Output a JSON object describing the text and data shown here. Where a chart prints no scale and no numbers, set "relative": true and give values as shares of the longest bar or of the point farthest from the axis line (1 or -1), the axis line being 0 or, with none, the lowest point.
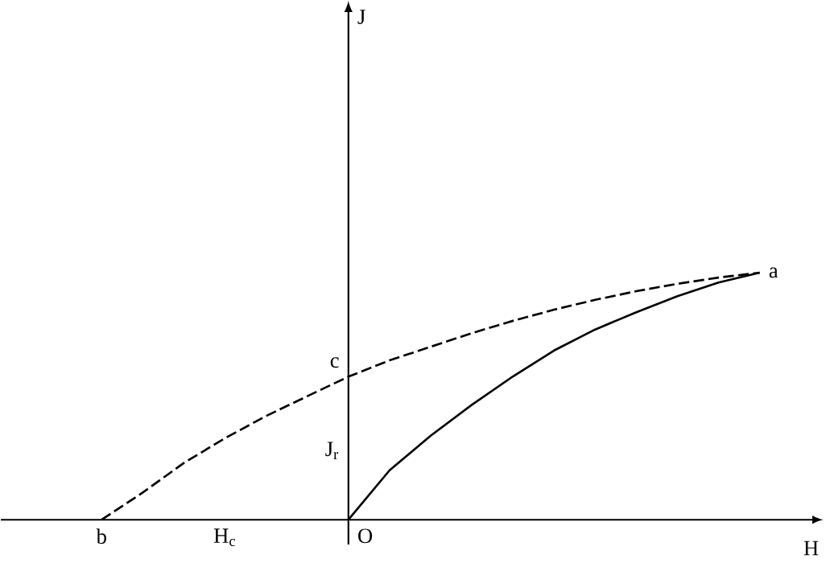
{
  "chart_data": {
    "type": "line",
    "relative": true,
    "xlabel": "H",
    "marker": "none",
    "categories": [
      null,
      null,
      null,
      null,
      null,
      null,
      null,
      null,
      null,
      null,
      null,
      null,
      null,
      null,
      null,
      null,
      null
    ],
    "series": [
      {
        "color": "#000000",
        "line_style": "solid",
        "values": [
          null,
          null,
          null,
          null,
          null,
          null,
          0,
          0.2,
          0.34,
          0.465,
          0.58,
          0.685,
          0.77,
          0.84,
          0.905,
          0.96,
          1
        ]
      },
      {
        "color": "#000000",
        "line_style": "dashed",
        "values": [
          0,
          0.11,
          0.23,
          0.33,
          0.42,
          0.5,
          0.579,
          0.645,
          0.7,
          0.755,
          0.805,
          0.85,
          0.89,
          0.925,
          0.955,
          0.98,
          1
        ]
      }
    ],
    "annotations": [
      "a",
      "b",
      "c",
      "O",
      "J$_{r}$",
      "H$_{c}$",
      "J"
    ]
  }
}
